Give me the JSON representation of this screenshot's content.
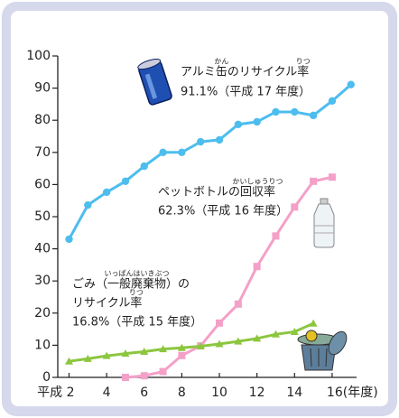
{
  "chart_data": {
    "type": "line",
    "xlim": [
      1.4,
      17.3
    ],
    "xticks": [
      {
        "value": 2,
        "label": "平成 2"
      },
      4,
      6,
      8,
      10,
      12,
      14,
      {
        "value": 16,
        "label": "16(年度)"
      }
    ],
    "ylim": [
      0,
      100
    ],
    "yticks": [
      0,
      10,
      20,
      30,
      40,
      50,
      60,
      70,
      80,
      90,
      100
    ],
    "series": [
      {
        "name": "アルミ缶のリサイクル率",
        "color": "#4dbdee",
        "marker": "circle",
        "x": [
          2,
          3,
          4,
          5,
          6,
          7,
          8,
          9,
          10,
          11,
          12,
          13,
          14,
          15,
          16,
          17
        ],
        "values": [
          43,
          53.6,
          57.6,
          61,
          65.7,
          70,
          70,
          73.3,
          73.9,
          78.7,
          79.5,
          82.6,
          82.6,
          81.5,
          86,
          91.1
        ]
      },
      {
        "name": "ペットボトルの回収率",
        "color": "#f4a0c8",
        "marker": "square",
        "x": [
          5,
          6,
          7,
          8,
          9,
          10,
          11,
          12,
          13,
          14,
          15,
          16
        ],
        "values": [
          0,
          0.5,
          1.8,
          6.8,
          9.8,
          16.9,
          22.8,
          34.5,
          44,
          53,
          61,
          62.3
        ]
      },
      {
        "name": "ごみ（一般廃棄物）のリサイクル率",
        "color": "#8cc63f",
        "marker": "triangle",
        "x": [
          2,
          3,
          4,
          5,
          6,
          7,
          8,
          9,
          10,
          11,
          12,
          13,
          14,
          15
        ],
        "values": [
          5,
          5.8,
          6.7,
          7.4,
          8,
          8.8,
          9.2,
          9.7,
          10.4,
          11.2,
          12.1,
          13.4,
          14.2,
          16.8
        ]
      }
    ],
    "annotations": [
      {
        "lines": [
          {
            "text": "アルミ缶のリサイクル率",
            "ruby": [
              {
                "base": "缶",
                "text": "かん"
              },
              {
                "base": "率",
                "text": "りつ"
              }
            ]
          },
          {
            "text": "91.1%（平成 17 年度）"
          }
        ]
      },
      {
        "lines": [
          {
            "text": "ペットボトルの回収率",
            "ruby": [
              {
                "base": "回収率",
                "text": "かいしゅうりつ"
              }
            ]
          },
          {
            "text": "62.3%（平成 16 年度）"
          }
        ]
      },
      {
        "lines": [
          {
            "text": "ごみ（一般廃棄物）の",
            "ruby": [
              {
                "base": "一般廃棄物",
                "text": "いっぱんはいきぶつ"
              }
            ]
          },
          {
            "text": "リサイクル率",
            "ruby": [
              {
                "base": "率",
                "text": "りつ"
              }
            ]
          },
          {
            "text": "16.8%（平成 15 年度）"
          }
        ]
      }
    ]
  }
}
